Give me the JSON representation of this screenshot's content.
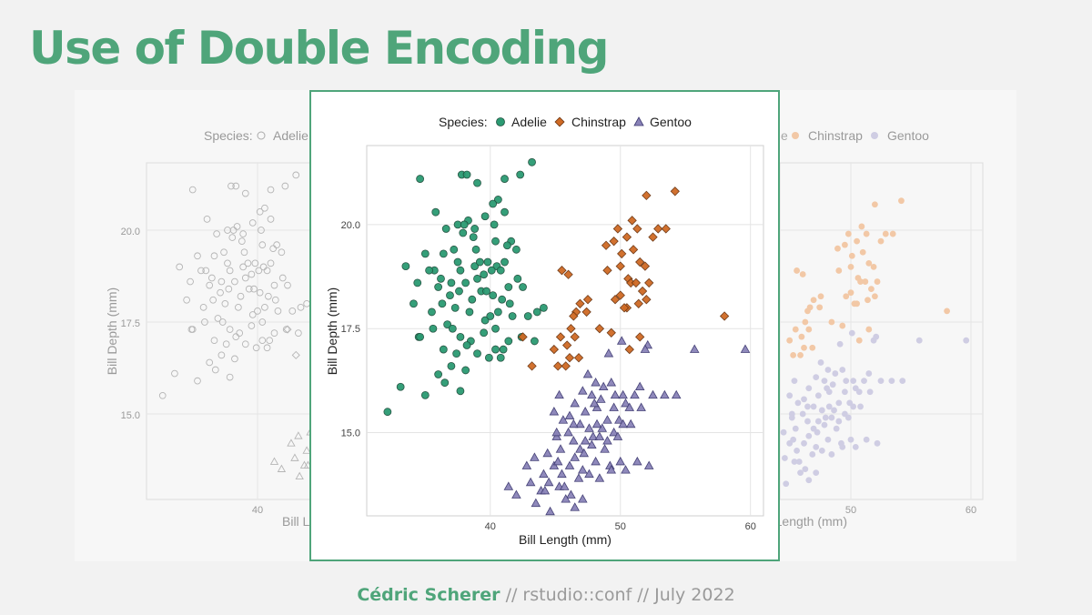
{
  "slide": {
    "title": "Use of Double Encoding",
    "footer": {
      "author": "Cédric Scherer",
      "sep1": " // ",
      "event": "rstudio::conf",
      "sep2": " // ",
      "date": "July 2022"
    }
  },
  "colors": {
    "accent": "#4fa57a",
    "adelie": "#1b9e77",
    "chinstrap": "#d95f02",
    "gentoo": "#7570b3",
    "adelie_fill": "#2b9a72",
    "chinstrap_fill": "#cf6a24",
    "gentoo_fill": "#8a83b8"
  },
  "chart_data": [
    {
      "type": "scatter",
      "role": "background-left-grey",
      "xlabel": "Bill Length (mm)",
      "ylabel": "Bill Depth (mm)",
      "legend": {
        "title": "Species:",
        "items": [
          "Adelie"
        ]
      },
      "xlim": [
        30,
        61
      ],
      "ylim": [
        13,
        22
      ],
      "x_ticks": [
        40
      ],
      "y_ticks": [
        15.0,
        17.5,
        20.0
      ],
      "x_tick_labels": [
        "40"
      ],
      "y_tick_labels": [
        "15.0",
        "17.5",
        "20.0"
      ],
      "grid": true,
      "series": []
    },
    {
      "type": "scatter",
      "role": "background-right-colored",
      "xlabel": "Bill Length (mm)",
      "legend": {
        "items": [
          "Chinstrap",
          "Gentoo"
        ]
      },
      "xlim": [
        30,
        61
      ],
      "ylim": [
        13,
        22
      ],
      "x_ticks": [
        50,
        60
      ],
      "y_ticks": [
        15.0,
        17.5,
        20.0
      ],
      "x_tick_labels": [
        "50",
        "60"
      ],
      "grid": true,
      "series": []
    },
    {
      "type": "scatter",
      "role": "main",
      "xlabel": "Bill Length (mm)",
      "ylabel": "Bill Depth (mm)",
      "legend": {
        "title": "Species:",
        "position": "top"
      },
      "xlim": [
        30.5,
        61
      ],
      "ylim": [
        13,
        21.9
      ],
      "x_ticks": [
        40,
        50,
        60
      ],
      "y_ticks": [
        15.0,
        17.5,
        20.0
      ],
      "x_tick_labels": [
        "40",
        "50",
        "60"
      ],
      "y_tick_labels": [
        "15.0",
        "17.5",
        "20.0"
      ],
      "grid": true,
      "series": [
        {
          "name": "Adelie",
          "shape": "circle",
          "color": "#1b9e77",
          "points": [
            [
              34.6,
              21.1
            ],
            [
              37.8,
              21.2
            ],
            [
              38.2,
              21.2
            ],
            [
              39.0,
              21.0
            ],
            [
              41.1,
              21.1
            ],
            [
              42.3,
              21.2
            ],
            [
              43.2,
              21.5
            ],
            [
              40.6,
              20.6
            ],
            [
              40.2,
              20.5
            ],
            [
              35.8,
              20.3
            ],
            [
              37.5,
              20.0
            ],
            [
              38.3,
              20.1
            ],
            [
              38.8,
              19.9
            ],
            [
              38.0,
              20.0
            ],
            [
              41.1,
              20.3
            ],
            [
              39.6,
              20.2
            ],
            [
              40.3,
              20.0
            ],
            [
              36.6,
              19.9
            ],
            [
              37.9,
              19.8
            ],
            [
              38.7,
              19.7
            ],
            [
              41.6,
              19.6
            ],
            [
              42.0,
              19.4
            ],
            [
              41.3,
              19.5
            ],
            [
              40.4,
              19.6
            ],
            [
              36.4,
              19.3
            ],
            [
              37.2,
              19.4
            ],
            [
              38.9,
              19.4
            ],
            [
              37.5,
              19.1
            ],
            [
              38.8,
              19.0
            ],
            [
              39.2,
              19.1
            ],
            [
              39.8,
              19.1
            ],
            [
              40.5,
              19.0
            ],
            [
              41.1,
              19.1
            ],
            [
              35.0,
              19.3
            ],
            [
              33.5,
              19.0
            ],
            [
              34.4,
              18.6
            ],
            [
              35.7,
              18.9
            ],
            [
              36.2,
              18.7
            ],
            [
              37.0,
              18.6
            ],
            [
              37.7,
              18.9
            ],
            [
              38.1,
              18.6
            ],
            [
              39.5,
              18.8
            ],
            [
              40.1,
              18.9
            ],
            [
              40.8,
              18.9
            ],
            [
              39.0,
              18.7
            ],
            [
              42.1,
              18.7
            ],
            [
              42.5,
              18.5
            ],
            [
              36.0,
              18.5
            ],
            [
              36.9,
              18.3
            ],
            [
              37.6,
              18.4
            ],
            [
              38.6,
              18.2
            ],
            [
              39.3,
              18.4
            ],
            [
              40.2,
              18.3
            ],
            [
              40.9,
              18.2
            ],
            [
              41.4,
              18.5
            ],
            [
              42.9,
              17.8
            ],
            [
              43.6,
              17.9
            ],
            [
              44.1,
              18.0
            ],
            [
              41.5,
              18.1
            ],
            [
              34.1,
              18.1
            ],
            [
              35.3,
              18.9
            ],
            [
              35.5,
              17.9
            ],
            [
              36.3,
              18.1
            ],
            [
              37.3,
              18.0
            ],
            [
              38.4,
              17.9
            ],
            [
              39.6,
              17.7
            ],
            [
              40.6,
              17.9
            ],
            [
              40.0,
              17.8
            ],
            [
              41.7,
              17.8
            ],
            [
              36.7,
              17.6
            ],
            [
              37.1,
              17.5
            ],
            [
              38.5,
              17.2
            ],
            [
              39.5,
              17.4
            ],
            [
              40.4,
              17.5
            ],
            [
              41.4,
              17.2
            ],
            [
              39.9,
              16.8
            ],
            [
              37.4,
              16.9
            ],
            [
              38.2,
              17.1
            ],
            [
              35.6,
              17.5
            ],
            [
              34.5,
              17.3
            ],
            [
              33.1,
              16.1
            ],
            [
              35.0,
              15.9
            ],
            [
              36.5,
              16.2
            ],
            [
              37.0,
              16.6
            ],
            [
              38.1,
              16.5
            ],
            [
              39.0,
              16.9
            ],
            [
              40.4,
              17.0
            ],
            [
              40.8,
              16.8
            ],
            [
              36.0,
              16.4
            ],
            [
              32.1,
              15.5
            ],
            [
              34.6,
              17.3
            ],
            [
              36.4,
              17.0
            ],
            [
              37.7,
              16.0
            ],
            [
              37.7,
              17.3
            ],
            [
              42.4,
              17.3
            ],
            [
              39.7,
              18.4
            ],
            [
              41.0,
              17.0
            ],
            [
              43.4,
              17.2
            ]
          ]
        },
        {
          "name": "Chinstrap",
          "shape": "diamond",
          "color": "#d95f02",
          "points": [
            [
              54.2,
              20.8
            ],
            [
              52.0,
              20.7
            ],
            [
              50.9,
              20.1
            ],
            [
              51.3,
              19.9
            ],
            [
              49.8,
              19.9
            ],
            [
              52.9,
              19.9
            ],
            [
              53.5,
              19.9
            ],
            [
              52.5,
              19.7
            ],
            [
              50.5,
              19.7
            ],
            [
              51.0,
              19.4
            ],
            [
              49.5,
              19.6
            ],
            [
              48.9,
              19.5
            ],
            [
              50.1,
              19.3
            ],
            [
              51.5,
              19.1
            ],
            [
              49.0,
              18.9
            ],
            [
              50.0,
              19.0
            ],
            [
              51.9,
              19.0
            ],
            [
              50.6,
              18.7
            ],
            [
              50.8,
              18.6
            ],
            [
              51.2,
              18.6
            ],
            [
              52.2,
              18.6
            ],
            [
              50.0,
              18.3
            ],
            [
              49.6,
              18.2
            ],
            [
              51.4,
              18.1
            ],
            [
              50.5,
              18.0
            ],
            [
              51.7,
              18.4
            ],
            [
              45.5,
              18.9
            ],
            [
              46.0,
              18.8
            ],
            [
              46.6,
              17.9
            ],
            [
              46.9,
              18.1
            ],
            [
              47.4,
              17.9
            ],
            [
              47.5,
              18.2
            ],
            [
              46.4,
              17.8
            ],
            [
              45.9,
              17.1
            ],
            [
              46.5,
              17.3
            ],
            [
              45.8,
              16.6
            ],
            [
              45.2,
              16.6
            ],
            [
              46.2,
              17.5
            ],
            [
              46.8,
              16.8
            ],
            [
              42.5,
              17.3
            ],
            [
              43.2,
              16.6
            ],
            [
              44.9,
              17.0
            ],
            [
              49.3,
              17.4
            ],
            [
              51.5,
              17.3
            ],
            [
              50.3,
              18.0
            ],
            [
              58.0,
              17.8
            ],
            [
              48.4,
              17.5
            ],
            [
              50.7,
              17.0
            ],
            [
              52.0,
              18.2
            ],
            [
              46.1,
              16.8
            ],
            [
              45.4,
              17.3
            ]
          ]
        },
        {
          "name": "Gentoo",
          "shape": "triangle",
          "color": "#7570b3",
          "points": [
            [
              59.6,
              17.0
            ],
            [
              55.7,
              17.0
            ],
            [
              52.1,
              17.1
            ],
            [
              51.9,
              17.0
            ],
            [
              50.1,
              17.2
            ],
            [
              49.1,
              16.9
            ],
            [
              47.5,
              16.4
            ],
            [
              48.1,
              16.2
            ],
            [
              48.7,
              16.1
            ],
            [
              49.3,
              16.2
            ],
            [
              47.1,
              16.0
            ],
            [
              47.8,
              15.9
            ],
            [
              48.5,
              15.8
            ],
            [
              49.6,
              15.9
            ],
            [
              50.2,
              15.9
            ],
            [
              51.1,
              15.9
            ],
            [
              52.5,
              15.9
            ],
            [
              53.4,
              15.9
            ],
            [
              54.3,
              15.9
            ],
            [
              51.5,
              16.1
            ],
            [
              46.5,
              15.7
            ],
            [
              47.3,
              15.5
            ],
            [
              48.2,
              15.6
            ],
            [
              49.0,
              15.3
            ],
            [
              49.9,
              15.3
            ],
            [
              50.4,
              15.7
            ],
            [
              51.6,
              15.6
            ],
            [
              45.3,
              15.9
            ],
            [
              46.1,
              15.4
            ],
            [
              44.9,
              15.5
            ],
            [
              45.6,
              15.3
            ],
            [
              46.9,
              15.2
            ],
            [
              48.6,
              15.1
            ],
            [
              47.9,
              14.9
            ],
            [
              47.3,
              14.8
            ],
            [
              49.5,
              15.0
            ],
            [
              50.2,
              15.2
            ],
            [
              50.8,
              15.2
            ],
            [
              45.1,
              14.9
            ],
            [
              46.4,
              14.8
            ],
            [
              46.9,
              14.6
            ],
            [
              47.8,
              14.7
            ],
            [
              48.4,
              14.9
            ],
            [
              44.4,
              14.5
            ],
            [
              45.4,
              14.6
            ],
            [
              46.5,
              14.4
            ],
            [
              47.2,
              14.5
            ],
            [
              48.1,
              14.3
            ],
            [
              49.2,
              14.2
            ],
            [
              50.0,
              14.3
            ],
            [
              44.9,
              14.2
            ],
            [
              45.5,
              14.0
            ],
            [
              46.1,
              14.2
            ],
            [
              46.8,
              13.9
            ],
            [
              47.6,
              14.0
            ],
            [
              48.4,
              13.9
            ],
            [
              49.3,
              14.1
            ],
            [
              43.4,
              14.4
            ],
            [
              44.1,
              14.0
            ],
            [
              43.9,
              13.6
            ],
            [
              44.5,
              13.8
            ],
            [
              45.3,
              13.7
            ],
            [
              46.2,
              13.5
            ],
            [
              47.1,
              13.4
            ],
            [
              42.8,
              14.2
            ],
            [
              43.1,
              13.8
            ],
            [
              44.2,
              13.6
            ],
            [
              45.7,
              13.7
            ],
            [
              41.4,
              13.7
            ],
            [
              42.0,
              13.5
            ],
            [
              43.5,
              13.3
            ],
            [
              44.6,
              13.1
            ],
            [
              45.8,
              13.4
            ],
            [
              46.5,
              13.2
            ],
            [
              47.1,
              14.1
            ],
            [
              48.8,
              14.6
            ],
            [
              49.8,
              14.9
            ],
            [
              51.3,
              14.3
            ],
            [
              52.2,
              14.2
            ],
            [
              50.4,
              14.1
            ],
            [
              49.0,
              14.8
            ],
            [
              46.0,
              15.0
            ],
            [
              45.1,
              15.0
            ],
            [
              48.2,
              15.2
            ],
            [
              49.5,
              15.6
            ],
            [
              50.7,
              15.6
            ],
            [
              48.0,
              15.7
            ],
            [
              46.4,
              15.2
            ],
            [
              47.6,
              15.1
            ],
            [
              45.2,
              14.3
            ]
          ]
        }
      ]
    }
  ]
}
